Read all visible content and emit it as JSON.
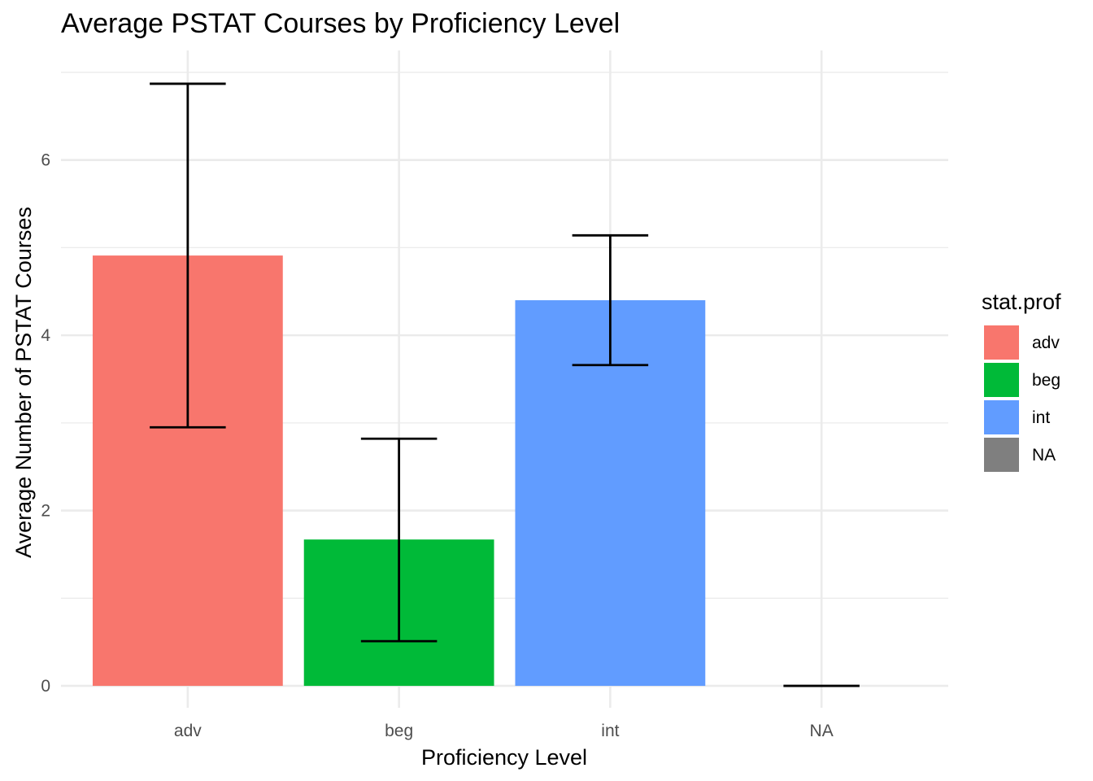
{
  "chart_data": {
    "type": "bar",
    "title": "Average PSTAT Courses by Proficiency Level",
    "xlabel": "Proficiency Level",
    "ylabel": "Average Number of PSTAT Courses",
    "categories": [
      "adv",
      "beg",
      "int",
      "NA"
    ],
    "values": [
      4.91,
      1.67,
      4.4,
      0
    ],
    "error_lower": [
      2.95,
      0.51,
      3.66,
      0
    ],
    "error_upper": [
      6.87,
      2.82,
      5.14,
      0
    ],
    "colors": [
      "#F8766D",
      "#00BA38",
      "#619CFF",
      "#7F7F7F"
    ],
    "ylim": [
      -0.25,
      7.25
    ],
    "yticks": [
      0,
      2,
      4,
      6
    ],
    "yticks_minor": [
      1,
      3,
      5,
      7
    ],
    "grid": true,
    "legend": {
      "title": "stat.prof",
      "position": "right",
      "items": [
        {
          "label": "adv",
          "color": "#F8766D"
        },
        {
          "label": "beg",
          "color": "#00BA38"
        },
        {
          "label": "int",
          "color": "#619CFF"
        },
        {
          "label": "NA",
          "color": "#7F7F7F"
        }
      ]
    }
  }
}
